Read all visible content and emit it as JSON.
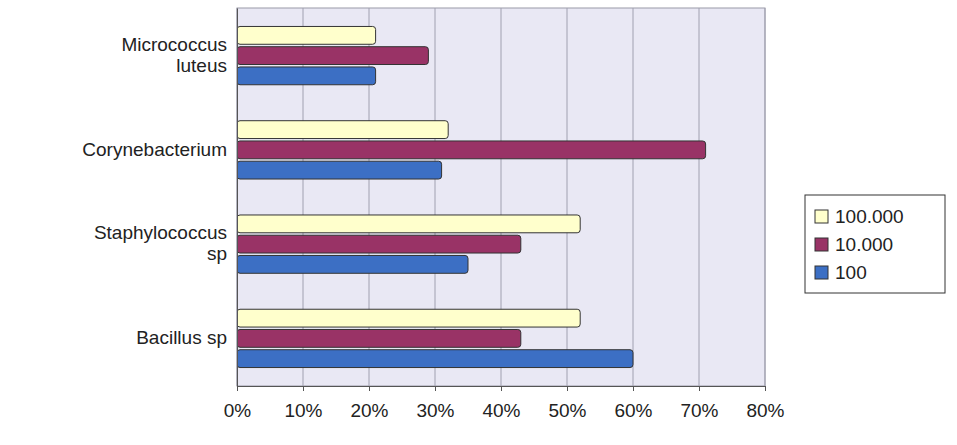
{
  "chart_data": {
    "type": "bar",
    "orientation": "horizontal",
    "categories": [
      "Micrococcus luteus",
      "Corynebacterium",
      "Staphylococcus sp",
      "Bacillus sp"
    ],
    "series": [
      {
        "name": "100.000",
        "color": "#ffffcc",
        "values": [
          21,
          32,
          52,
          52
        ]
      },
      {
        "name": "10.000",
        "color": "#993366",
        "values": [
          29,
          71,
          43,
          43
        ]
      },
      {
        "name": "100",
        "color": "#3c6fc4",
        "values": [
          21,
          31,
          35,
          60
        ]
      }
    ],
    "xlim": [
      0,
      80
    ],
    "xticks": [
      {
        "value": 0,
        "label": "0%"
      },
      {
        "value": 10,
        "label": "10%"
      },
      {
        "value": 20,
        "label": "20%"
      },
      {
        "value": 30,
        "label": "30%"
      },
      {
        "value": 40,
        "label": "40%"
      },
      {
        "value": 50,
        "label": "50%"
      },
      {
        "value": 60,
        "label": "60%"
      },
      {
        "value": 70,
        "label": "70%"
      },
      {
        "value": 80,
        "label": "80%"
      }
    ],
    "grid": true,
    "legend": "right"
  }
}
